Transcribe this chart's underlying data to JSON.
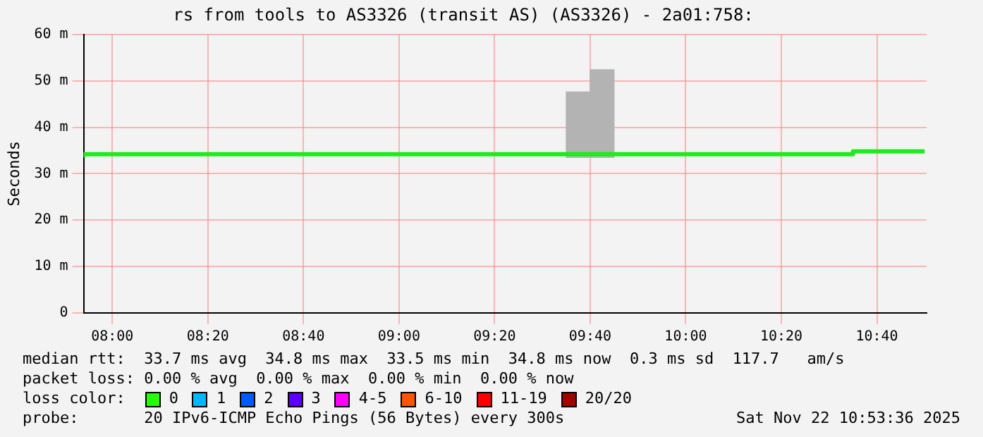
{
  "chart_data": {
    "type": "step",
    "title": "rs from tools to AS3326 (transit AS) (AS3326) - 2a01:758:",
    "ylabel": "Seconds",
    "xlim": [
      7.9,
      10.84
    ],
    "xticks": [
      {
        "value": 8,
        "label": "08:00"
      },
      {
        "value": 8.3333,
        "label": "08:20"
      },
      {
        "value": 8.6667,
        "label": "08:40"
      },
      {
        "value": 9,
        "label": "09:00"
      },
      {
        "value": 9.3333,
        "label": "09:20"
      },
      {
        "value": 9.6667,
        "label": "09:40"
      },
      {
        "value": 10,
        "label": "10:00"
      },
      {
        "value": 10.3333,
        "label": "10:20"
      },
      {
        "value": 10.6667,
        "label": "10:40"
      }
    ],
    "ylim": [
      0,
      60
    ],
    "yticks": [
      0,
      {
        "value": 10,
        "label": "10 m"
      },
      {
        "value": 20,
        "label": "20 m"
      },
      {
        "value": 30,
        "label": "30 m"
      },
      {
        "value": 40,
        "label": "40 m"
      },
      {
        "value": 50,
        "label": "50 m"
      },
      {
        "value": 60,
        "label": "60 m"
      }
    ],
    "grid": true,
    "legend": false,
    "series": [
      {
        "type": "bar",
        "color": "#b3b3b3",
        "x": [
          9.625,
          9.7083
        ],
        "base": [
          33.5,
          33.5
        ],
        "values": [
          14.1,
          18.9
        ]
      },
      {
        "color": "#22e822",
        "x": [
          7.9,
          10.5833,
          10.6667,
          10.8333
        ],
        "values": [
          33.5,
          34.2,
          34.8,
          34.8
        ]
      }
    ],
    "annotations": [
      "median rtt:  33.7 ms avg  34.8 ms max  33.5 ms min  34.8 ms now  0.3 ms sd  117.7   am/s",
      "packet loss: 0.00 % avg  0.00 % max  0.00 % min  0.00 % now",
      "loss color:",
      "0",
      "1",
      "2",
      "3",
      "4-5",
      "6-10",
      "11-19",
      "20/20",
      "probe:       20 IPv6-ICMP Echo Pings (56 Bytes) every 300s",
      "Sat Nov 22 10:53:36 2025"
    ]
  }
}
